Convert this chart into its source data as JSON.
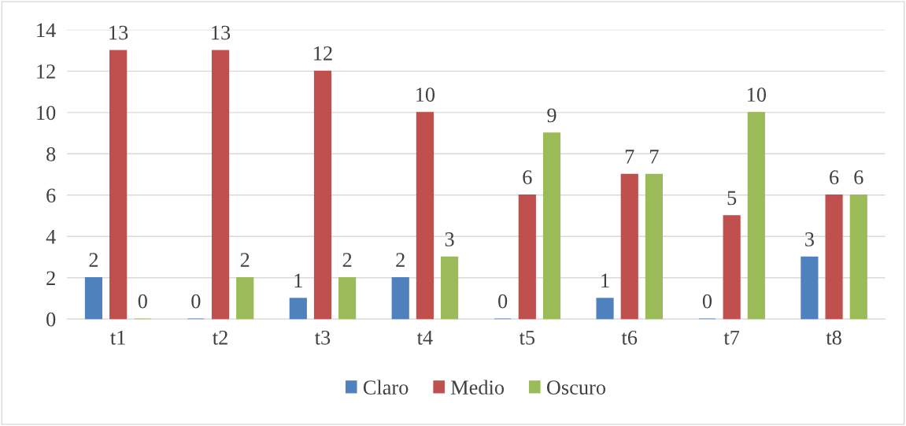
{
  "chart_data": {
    "type": "bar",
    "categories": [
      "t1",
      "t2",
      "t3",
      "t4",
      "t5",
      "t6",
      "t7",
      "t8"
    ],
    "series": [
      {
        "name": "Claro",
        "color": "#4f81bd",
        "values": [
          2,
          0,
          1,
          2,
          0,
          1,
          0,
          3
        ]
      },
      {
        "name": "Medio",
        "color": "#c0504d",
        "values": [
          13,
          13,
          12,
          10,
          6,
          7,
          5,
          6
        ]
      },
      {
        "name": "Oscuro",
        "color": "#9bbb59",
        "values": [
          0,
          2,
          2,
          3,
          9,
          7,
          10,
          6
        ]
      }
    ],
    "ylim": [
      0,
      14
    ],
    "yticks": [
      0,
      2,
      4,
      6,
      8,
      10,
      12,
      14
    ],
    "grid": "y",
    "legend": "bottom",
    "data_labels": true
  }
}
